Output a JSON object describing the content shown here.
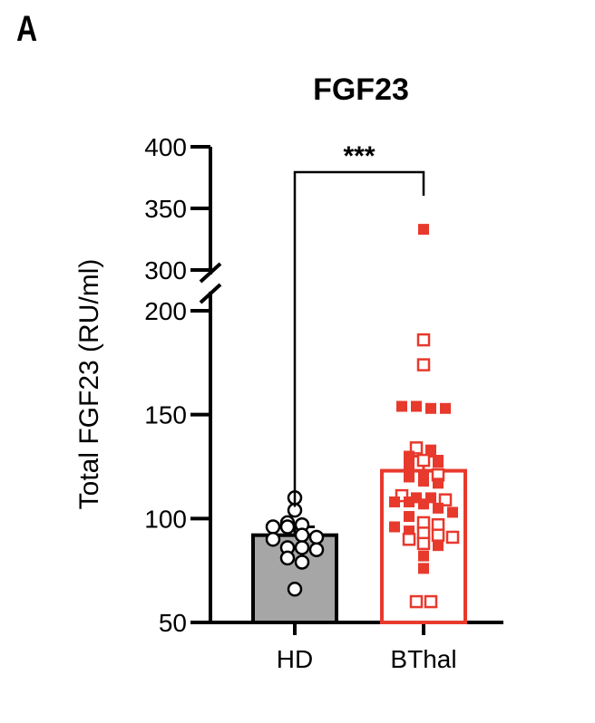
{
  "panel_label": "A",
  "chart_data": {
    "type": "bar",
    "title": "FGF23",
    "ylabel": "Total FGF23 (RU/ml)",
    "xlabel": "",
    "categories": [
      "HD",
      "BThal"
    ],
    "values": [
      92,
      123
    ],
    "sem": [
      4,
      7
    ],
    "ylim": [
      50,
      400
    ],
    "axis_break": [
      200,
      300
    ],
    "yticks": [
      50,
      100,
      150,
      200,
      300,
      350,
      400
    ],
    "significance": {
      "between": [
        "HD",
        "BThal"
      ],
      "label": "***"
    },
    "colors": {
      "HD": "#a6a6a6",
      "BThal": "#e8392d"
    },
    "points": {
      "HD": [
        {
          "y": 110,
          "marker": "open-circle"
        },
        {
          "y": 104,
          "marker": "open-circle"
        },
        {
          "y": 98,
          "marker": "open-circle"
        },
        {
          "y": 96,
          "marker": "open-circle"
        },
        {
          "y": 97,
          "marker": "open-circle"
        },
        {
          "y": 96,
          "marker": "open-circle"
        },
        {
          "y": 92,
          "marker": "open-circle"
        },
        {
          "y": 91,
          "marker": "open-circle"
        },
        {
          "y": 90,
          "marker": "open-circle"
        },
        {
          "y": 86,
          "marker": "open-circle"
        },
        {
          "y": 86,
          "marker": "open-circle"
        },
        {
          "y": 85,
          "marker": "open-circle"
        },
        {
          "y": 81,
          "marker": "open-circle"
        },
        {
          "y": 79,
          "marker": "open-circle"
        },
        {
          "y": 66,
          "marker": "open-circle"
        }
      ],
      "BThal": [
        {
          "y": 333,
          "marker": "filled-square"
        },
        {
          "y": 186,
          "marker": "open-square"
        },
        {
          "y": 174,
          "marker": "open-square"
        },
        {
          "y": 154,
          "marker": "filled-square"
        },
        {
          "y": 154,
          "marker": "filled-square"
        },
        {
          "y": 153,
          "marker": "filled-square"
        },
        {
          "y": 153,
          "marker": "filled-square"
        },
        {
          "y": 134,
          "marker": "open-square"
        },
        {
          "y": 133,
          "marker": "filled-square"
        },
        {
          "y": 130,
          "marker": "filled-square"
        },
        {
          "y": 128,
          "marker": "open-square"
        },
        {
          "y": 127,
          "marker": "filled-square"
        },
        {
          "y": 126,
          "marker": "filled-square"
        },
        {
          "y": 121,
          "marker": "filled-square"
        },
        {
          "y": 121,
          "marker": "open-square"
        },
        {
          "y": 120,
          "marker": "filled-square"
        },
        {
          "y": 118,
          "marker": "filled-square"
        },
        {
          "y": 117,
          "marker": "filled-square"
        },
        {
          "y": 111,
          "marker": "open-square"
        },
        {
          "y": 110,
          "marker": "filled-square"
        },
        {
          "y": 110,
          "marker": "filled-square"
        },
        {
          "y": 109,
          "marker": "open-square"
        },
        {
          "y": 108,
          "marker": "filled-square"
        },
        {
          "y": 108,
          "marker": "filled-square"
        },
        {
          "y": 107,
          "marker": "filled-square"
        },
        {
          "y": 105,
          "marker": "filled-square"
        },
        {
          "y": 103,
          "marker": "filled-square"
        },
        {
          "y": 101,
          "marker": "filled-square"
        },
        {
          "y": 98,
          "marker": "open-square"
        },
        {
          "y": 97,
          "marker": "open-square"
        },
        {
          "y": 96,
          "marker": "filled-square"
        },
        {
          "y": 94,
          "marker": "filled-square"
        },
        {
          "y": 93,
          "marker": "open-square"
        },
        {
          "y": 92,
          "marker": "open-square"
        },
        {
          "y": 91,
          "marker": "open-square"
        },
        {
          "y": 90,
          "marker": "open-square"
        },
        {
          "y": 88,
          "marker": "open-square"
        },
        {
          "y": 87,
          "marker": "filled-square"
        },
        {
          "y": 82,
          "marker": "filled-square"
        },
        {
          "y": 76,
          "marker": "filled-square"
        },
        {
          "y": 60,
          "marker": "open-square"
        },
        {
          "y": 60,
          "marker": "open-square"
        }
      ]
    }
  }
}
